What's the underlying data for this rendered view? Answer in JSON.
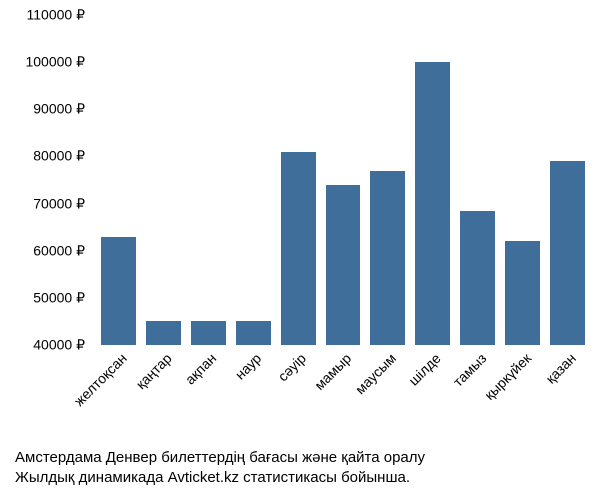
{
  "chart": {
    "type": "bar",
    "categories": [
      "желтоқсан",
      "қаңтар",
      "ақпан",
      "наур",
      "сәуір",
      "мамыр",
      "маусым",
      "шілде",
      "тамыз",
      "қыркүйек",
      "қазан"
    ],
    "values": [
      63000,
      45000,
      45000,
      45000,
      81000,
      74000,
      77000,
      100000,
      68500,
      62000,
      79000
    ],
    "bar_color": "#406e9a",
    "ymin": 40000,
    "ymax": 110000,
    "ytick_step": 10000,
    "ytick_suffix": " ₽",
    "background_color": "#ffffff",
    "label_fontsize": 14,
    "label_color": "#000000",
    "x_label_rotation": -45,
    "bar_gap": 10
  },
  "caption": {
    "line1": "Амстердама Денвер билеттердің бағасы және қайта оралу",
    "line2": "Жылдық динамикада Avticket.kz статистикасы бойынша.",
    "fontsize": 15,
    "color": "#000000"
  }
}
